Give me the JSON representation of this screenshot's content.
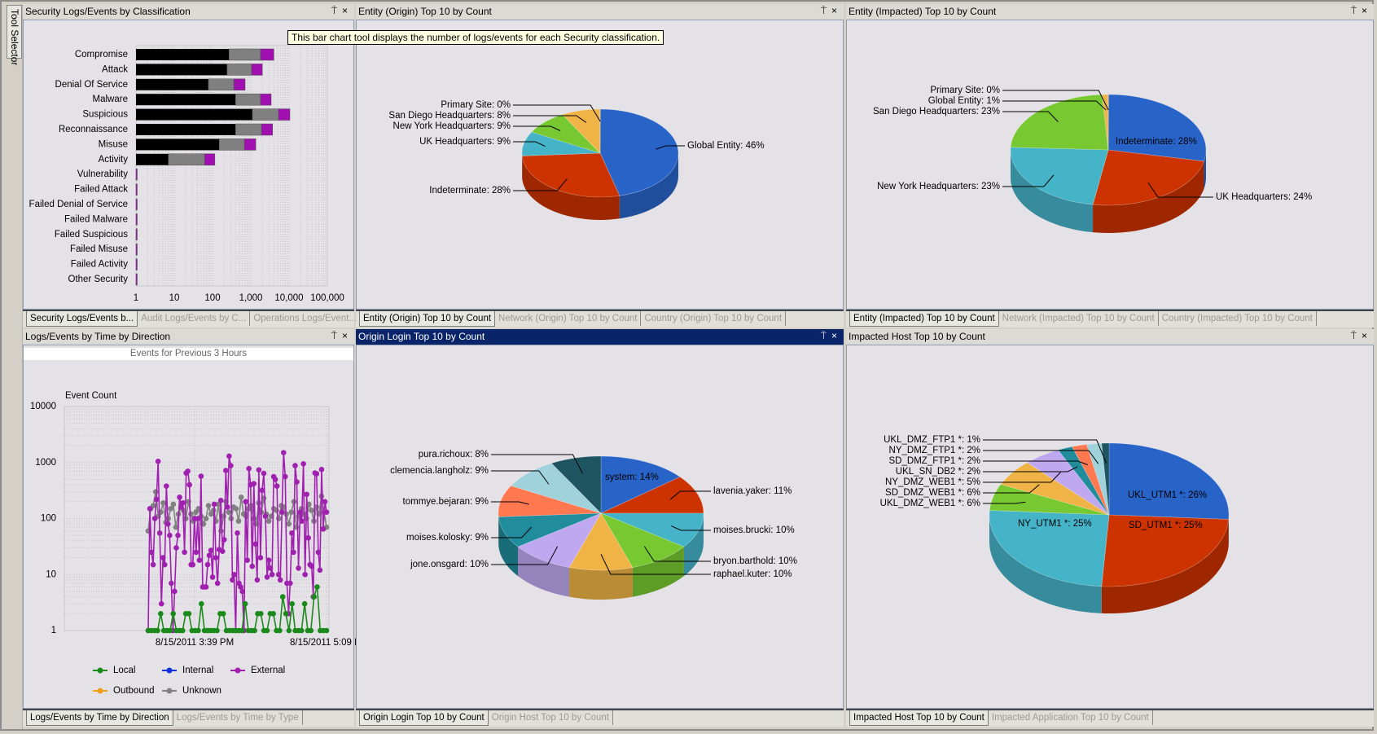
{
  "tool_selector": {
    "label": "Tool Selector"
  },
  "tooltip": "This bar chart tool displays the number of logs/events for each Security classification.",
  "colors": {
    "bar_black": "#000000",
    "bar_gray": "#808080",
    "bar_purple": "#a010b0",
    "active_title": "#0a246a",
    "local": "#1a8a1a",
    "internal": "#1030e0",
    "external": "#a020b0",
    "outbound": "#f0a020",
    "unknown": "#808080"
  },
  "panels": {
    "security": {
      "title": "Security Logs/Events by Classification",
      "tabs": [
        "Security Logs/Events b...",
        "Audit Logs/Events by C...",
        "Operations Logs/Event..."
      ]
    },
    "entity_origin": {
      "title": "Entity (Origin) Top 10 by Count",
      "tabs": [
        "Entity (Origin) Top 10 by Count",
        "Network (Origin) Top 10 by Count",
        "Country (Origin) Top 10 by Count"
      ]
    },
    "entity_impacted": {
      "title": "Entity (Impacted) Top 10 by Count",
      "tabs": [
        "Entity (Impacted) Top 10 by Count",
        "Network (Impacted) Top 10 by Count",
        "Country (Impacted) Top 10 by Count"
      ]
    },
    "time_direction": {
      "title": "Logs/Events by Time by Direction",
      "subtitle": "Events for Previous 3 Hours",
      "tabs": [
        "Logs/Events by Time by Direction",
        "Logs/Events by Time by Type"
      ]
    },
    "origin_login": {
      "title": "Origin Login Top 10 by Count",
      "tabs": [
        "Origin Login Top 10 by Count",
        "Origin Host Top 10 by Count"
      ]
    },
    "impacted_host": {
      "title": "Impacted Host Top 10 by Count",
      "tabs": [
        "Impacted Host Top 10 by Count",
        "Impacted Application Top 10 by Count"
      ]
    }
  },
  "pane_buttons": {
    "pin": "⍑",
    "close": "×"
  },
  "chart_data": [
    {
      "id": "security_bar",
      "type": "bar",
      "orientation": "horizontal",
      "stacked": true,
      "x_scale": "log",
      "xlim": [
        1,
        100000
      ],
      "x_ticks": [
        "1",
        "10",
        "100",
        "1,000",
        "10,000",
        "100,000"
      ],
      "grid": true,
      "categories": [
        "Compromise",
        "Attack",
        "Denial Of Service",
        "Malware",
        "Suspicious",
        "Reconnaissance",
        "Misuse",
        "Activity",
        "Vulnerability",
        "Failed Attack",
        "Failed Denial of Service",
        "Failed Malware",
        "Failed Suspicious",
        "Failed Misuse",
        "Failed Activity",
        "Other Security"
      ],
      "series_colors": [
        "#000000",
        "#808080",
        "#a010b0"
      ],
      "stack_totals": [
        [
          270,
          1800,
          4000
        ],
        [
          240,
          1050,
          2000
        ],
        [
          78,
          360,
          710
        ],
        [
          400,
          1800,
          3400
        ],
        [
          1100,
          5300,
          10500
        ],
        [
          400,
          1900,
          3700
        ],
        [
          150,
          680,
          1350
        ],
        [
          7,
          62,
          115
        ],
        [
          1,
          1,
          1
        ],
        [
          1,
          1,
          1
        ],
        [
          1,
          1,
          1
        ],
        [
          1,
          1,
          1
        ],
        [
          1,
          1,
          1
        ],
        [
          1,
          1,
          1
        ],
        [
          1,
          1,
          1
        ],
        [
          1,
          1,
          1
        ]
      ]
    },
    {
      "id": "entity_origin_pie",
      "type": "pie",
      "three_d": true,
      "slices": [
        {
          "name": "Global Entity",
          "value": 46,
          "label": "Global Entity: 46%",
          "color": "#2864c8"
        },
        {
          "name": "Indeterminate",
          "value": 28,
          "label": "Indeterminate: 28%",
          "color": "#cc3300"
        },
        {
          "name": "UK Headquarters",
          "value": 9,
          "label": "UK Headquarters: 9%",
          "color": "#46b4c8"
        },
        {
          "name": "New York Headquarters",
          "value": 9,
          "label": "New York Headquarters: 9%",
          "color": "#78c832"
        },
        {
          "name": "San Diego Headquarters",
          "value": 8,
          "label": "San Diego Headquarters: 8%",
          "color": "#f0b446"
        },
        {
          "name": "Primary Site",
          "value": 0,
          "label": "Primary Site: 0%",
          "color": "#a0a0e0"
        }
      ]
    },
    {
      "id": "entity_impacted_pie",
      "type": "pie",
      "three_d": true,
      "slices": [
        {
          "name": "Indeterminate",
          "value": 28,
          "label": "Indeterminate: 28%",
          "color": "#2864c8"
        },
        {
          "name": "UK Headquarters",
          "value": 24,
          "label": "UK Headquarters: 24%",
          "color": "#cc3300"
        },
        {
          "name": "New York Headquarters",
          "value": 23,
          "label": "New York Headquarters: 23%",
          "color": "#46b4c8"
        },
        {
          "name": "San Diego Headquarters",
          "value": 23,
          "label": "San Diego Headquarters: 23%",
          "color": "#78c832"
        },
        {
          "name": "Global Entity",
          "value": 1,
          "label": "Global Entity: 1%",
          "color": "#f0b446"
        },
        {
          "name": "Primary Site",
          "value": 0,
          "label": "Primary Site: 0%",
          "color": "#a0a0e0"
        }
      ]
    },
    {
      "id": "time_direction_line",
      "type": "line",
      "y_scale": "log",
      "ylim": [
        1,
        10000
      ],
      "ylabel": "Event Count",
      "y_ticks": [
        "10000",
        "1000",
        "100",
        "10",
        "1"
      ],
      "x_ticks": [
        "8/15/2011 3:39 PM",
        "8/15/2011 5:09 P"
      ],
      "grid": true,
      "legend": {
        "placement": "bottom",
        "entries": [
          "Local",
          "Internal",
          "External",
          "Outbound",
          "Unknown"
        ]
      },
      "series": [
        {
          "name": "Unknown",
          "color": "#808080",
          "values": [
            60,
            150,
            170,
            300,
            110,
            130,
            190,
            85,
            100,
            150,
            180,
            70,
            120,
            160,
            140,
            100,
            200,
            120,
            90,
            130,
            150,
            110,
            80,
            100,
            170,
            120,
            140,
            90,
            180,
            60,
            110,
            200,
            130,
            100,
            160,
            150,
            90,
            240,
            120,
            110,
            150,
            170,
            100,
            80,
            190,
            130,
            230,
            120,
            90,
            110,
            150,
            140,
            100,
            170,
            160,
            120,
            80,
            130,
            200,
            70,
            110,
            150,
            120,
            100,
            180,
            140,
            90,
            160,
            120,
            250,
            130,
            70
          ]
        },
        {
          "name": "External",
          "color": "#a020b0",
          "values": [
            1,
            150,
            25,
            15,
            100,
            220,
            1050,
            55,
            3,
            20,
            15,
            380,
            80,
            50,
            7,
            1,
            5,
            30,
            50,
            240,
            160,
            190,
            25,
            650,
            700,
            400,
            15,
            15,
            100,
            25,
            100,
            18,
            570,
            6,
            6,
            6,
            15,
            22,
            27,
            9,
            180,
            20,
            7,
            28,
            210,
            26,
            42,
            720,
            160,
            1300,
            880,
            8,
            10,
            1,
            55,
            7,
            6,
            5,
            1,
            200,
            18,
            780,
            400,
            14,
            420,
            35,
            8,
            740,
            20,
            320,
            640,
            110,
            9,
            18,
            13,
            10,
            560,
            500,
            380,
            10,
            8,
            130,
            1500,
            560,
            7,
            2,
            7,
            55,
            25,
            880,
            450,
            13,
            130,
            90,
            950,
            10,
            270,
            45,
            15,
            14,
            4,
            650,
            630,
            25,
            12,
            750,
            65,
            200,
            130
          ]
        },
        {
          "name": "Local",
          "color": "#1a8a1a",
          "values": [
            1,
            1,
            1,
            1,
            2,
            1,
            1,
            1,
            2,
            1,
            1,
            1,
            2,
            2,
            1,
            1,
            1,
            3,
            1,
            1,
            1,
            1,
            1,
            2,
            2,
            1,
            1,
            1,
            1,
            1,
            1,
            3,
            1,
            1,
            1,
            2,
            2,
            1,
            1,
            2,
            2,
            1,
            1,
            4,
            2,
            1,
            3,
            1,
            1,
            1,
            3,
            1,
            1,
            4,
            6,
            1,
            1,
            1
          ]
        },
        {
          "name": "Internal",
          "color": "#1030e0",
          "values": []
        },
        {
          "name": "Outbound",
          "color": "#f0a020",
          "values": []
        }
      ]
    },
    {
      "id": "origin_login_pie",
      "type": "pie",
      "three_d": true,
      "slices": [
        {
          "name": "system",
          "value": 14,
          "label": "system: 14%",
          "color": "#2864c8"
        },
        {
          "name": "lavenia.yaker",
          "value": 11,
          "label": "lavenia.yaker: 11%",
          "color": "#cc3300"
        },
        {
          "name": "moises.brucki",
          "value": 10,
          "label": "moises.brucki: 10%",
          "color": "#46b4c8"
        },
        {
          "name": "bryon.barthold",
          "value": 10,
          "label": "bryon.barthold: 10%",
          "color": "#78c832"
        },
        {
          "name": "raphael.kuter",
          "value": 10,
          "label": "raphael.kuter: 10%",
          "color": "#f0b446"
        },
        {
          "name": "jone.onsgard",
          "value": 10,
          "label": "jone.onsgard: 10%",
          "color": "#c0a8f0"
        },
        {
          "name": "moises.kolosky",
          "value": 9,
          "label": "moises.kolosky: 9%",
          "color": "#208c9c"
        },
        {
          "name": "tommye.bejaran",
          "value": 9,
          "label": "tommye.bejaran: 9%",
          "color": "#ff7850"
        },
        {
          "name": "clemencia.langholz",
          "value": 9,
          "label": "clemencia.langholz: 9%",
          "color": "#a0d2dc"
        },
        {
          "name": "pura.richoux",
          "value": 8,
          "label": "pura.richoux: 8%",
          "color": "#1e5560"
        }
      ]
    },
    {
      "id": "impacted_host_pie",
      "type": "pie",
      "three_d": true,
      "slices": [
        {
          "name": "UKL_UTM1 *",
          "value": 26,
          "label": "UKL_UTM1 *: 26%",
          "color": "#2864c8"
        },
        {
          "name": "SD_UTM1 *",
          "value": 25,
          "label": "SD_UTM1 *: 25%",
          "color": "#cc3300"
        },
        {
          "name": "NY_UTM1 *",
          "value": 25,
          "label": "NY_UTM1 *: 25%",
          "color": "#46b4c8"
        },
        {
          "name": "UKL_DMZ_WEB1 *",
          "value": 6,
          "label": "UKL_DMZ_WEB1 *: 6%",
          "color": "#78c832"
        },
        {
          "name": "SD_DMZ_WEB1 *",
          "value": 6,
          "label": "SD_DMZ_WEB1 *: 6%",
          "color": "#f0b446"
        },
        {
          "name": "NY_DMZ_WEB1 *",
          "value": 5,
          "label": "NY_DMZ_WEB1 *: 5%",
          "color": "#c0a8f0"
        },
        {
          "name": "UKL_SN_DB2 *",
          "value": 2,
          "label": "UKL_SN_DB2 *: 2%",
          "color": "#208c9c"
        },
        {
          "name": "SD_DMZ_FTP1 *",
          "value": 2,
          "label": "SD_DMZ_FTP1 *: 2%",
          "color": "#ff7850"
        },
        {
          "name": "NY_DMZ_FTP1 *",
          "value": 2,
          "label": "NY_DMZ_FTP1 *: 2%",
          "color": "#a0d2dc"
        },
        {
          "name": "UKL_DMZ_FTP1 *",
          "value": 1,
          "label": "UKL_DMZ_FTP1 *: 1%",
          "color": "#1e5560"
        }
      ]
    }
  ]
}
